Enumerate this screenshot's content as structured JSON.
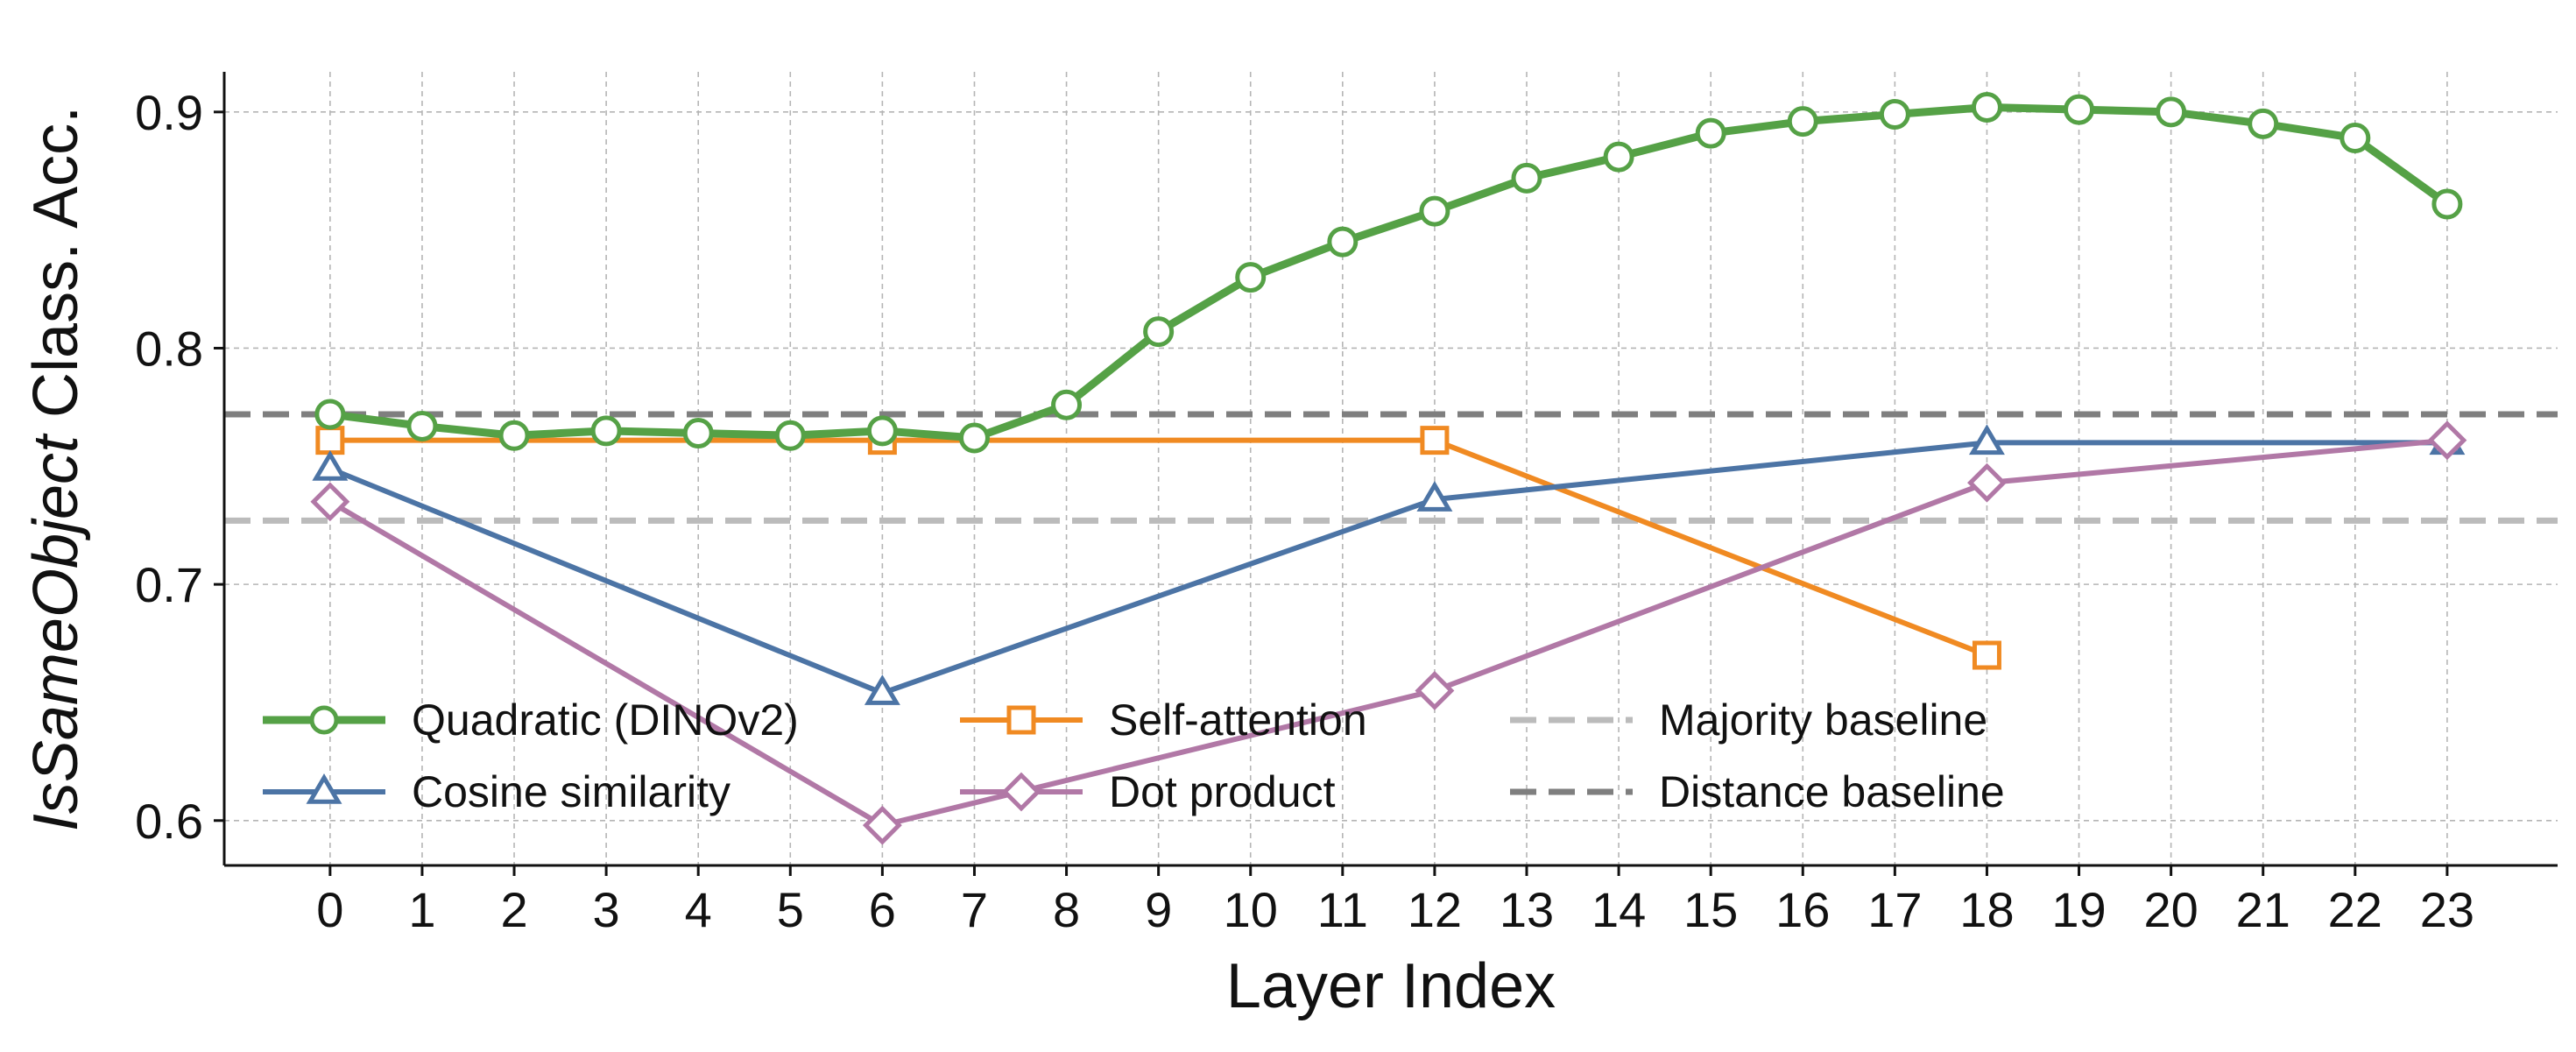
{
  "chart_data": {
    "type": "line",
    "xlabel": "Layer Index",
    "ylabel_italic": "IsSameObject",
    "ylabel_rest": " Class. Acc.",
    "x_ticks": [
      0,
      1,
      2,
      3,
      4,
      5,
      6,
      7,
      8,
      9,
      10,
      11,
      12,
      13,
      14,
      15,
      16,
      17,
      18,
      19,
      20,
      21,
      22,
      23
    ],
    "y_ticks": [
      0.6,
      0.7,
      0.8,
      0.9
    ],
    "xlim": [
      -1.15,
      24.2
    ],
    "ylim": [
      0.581,
      0.917
    ],
    "grid": true,
    "legend_position": "lower-left",
    "series": [
      {
        "name": "Quadratic (DINOv2)",
        "color": "#55a146",
        "marker": "circle",
        "thick": true,
        "x": [
          0,
          1,
          2,
          3,
          4,
          5,
          6,
          7,
          8,
          9,
          10,
          11,
          12,
          13,
          14,
          15,
          16,
          17,
          18,
          19,
          20,
          21,
          22,
          23
        ],
        "y": [
          0.772,
          0.767,
          0.763,
          0.765,
          0.764,
          0.763,
          0.765,
          0.762,
          0.776,
          0.807,
          0.83,
          0.845,
          0.858,
          0.872,
          0.881,
          0.891,
          0.896,
          0.899,
          0.902,
          0.901,
          0.9,
          0.895,
          0.889,
          0.861
        ]
      },
      {
        "name": "Cosine similarity",
        "color": "#4c74a5",
        "marker": "triangle",
        "thick": false,
        "x": [
          0,
          6,
          12,
          18,
          23
        ],
        "y": [
          0.749,
          0.654,
          0.736,
          0.76,
          0.76
        ]
      },
      {
        "name": "Self-attention",
        "color": "#f08a22",
        "marker": "square",
        "thick": false,
        "x": [
          0,
          6,
          12,
          18
        ],
        "y": [
          0.761,
          0.761,
          0.761,
          0.67
        ]
      },
      {
        "name": "Dot product",
        "color": "#b178a6",
        "marker": "diamond",
        "thick": false,
        "x": [
          0,
          6,
          12,
          18,
          23
        ],
        "y": [
          0.735,
          0.598,
          0.655,
          0.743,
          0.761
        ]
      }
    ],
    "baselines": [
      {
        "name": "Majority baseline",
        "y": 0.727,
        "color": "#bbbbbb"
      },
      {
        "name": "Distance baseline",
        "y": 0.772,
        "color": "#7f7f7f"
      }
    ]
  }
}
